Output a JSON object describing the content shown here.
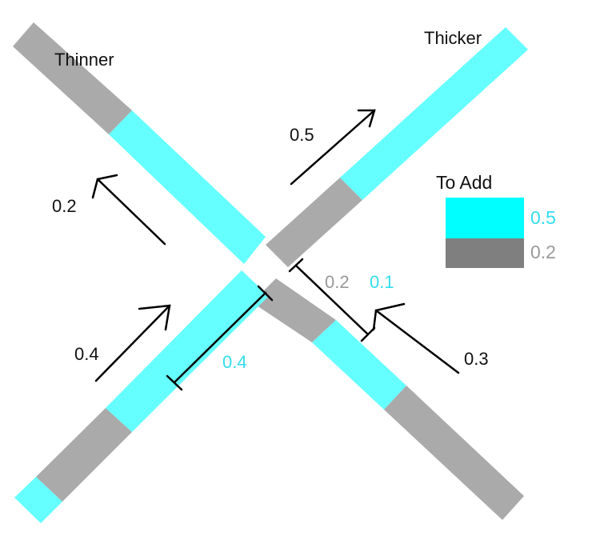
{
  "labels": {
    "thinner": "Thinner",
    "thicker": "Thicker",
    "arrow_up_right_top": "0.5",
    "arrow_up_left": "0.2",
    "arrow_up_right_bottom": "0.4",
    "arrow_lower_right": "0.3",
    "measure_left": "0.4",
    "measure_right_grey": "0.2",
    "measure_right_cyan": "0.1"
  },
  "legend": {
    "title": "To Add",
    "items": [
      {
        "label": "0.5",
        "color": "#00ffff"
      },
      {
        "label": "0.2",
        "color": "#7f7f7f"
      }
    ]
  },
  "colors": {
    "cyan_bar": "#66ffff",
    "grey_bar": "#aaaaaa",
    "cyan_text": "#33ddee",
    "grey_text": "#999999",
    "arrow": "#000000"
  }
}
